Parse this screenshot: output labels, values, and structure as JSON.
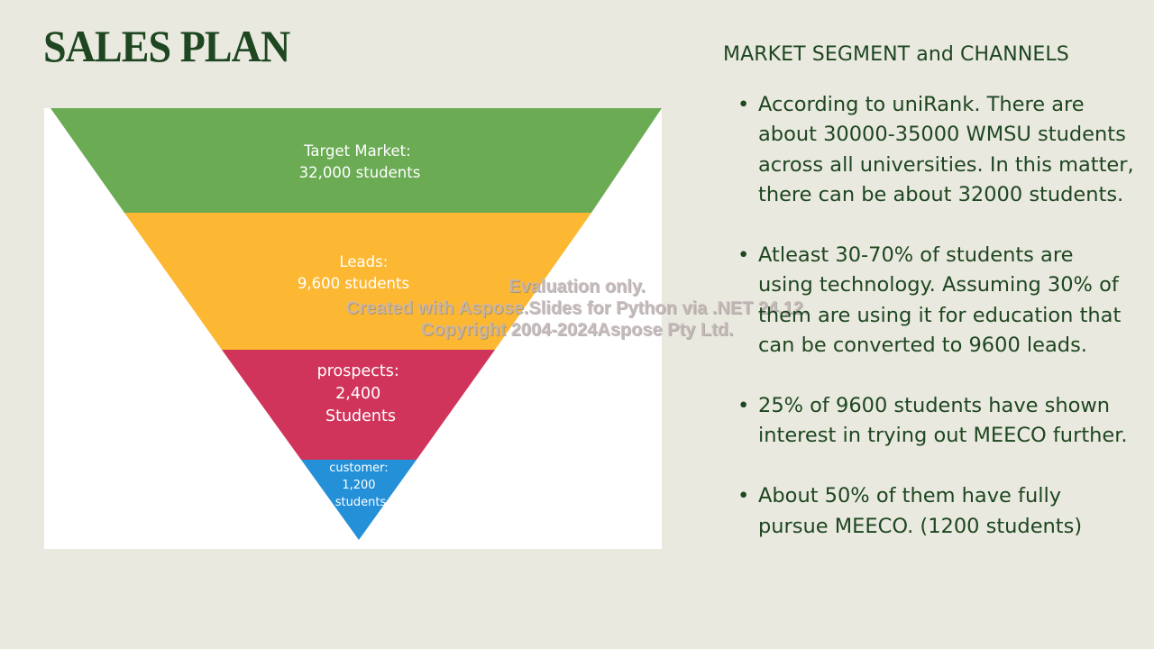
{
  "title": "SALES PLAN",
  "funnel": {
    "stages": [
      {
        "lines": [
          "Target Market:",
          "32,000 students"
        ],
        "color": "#6aab54"
      },
      {
        "lines": [
          "Leads:",
          "9,600 students"
        ],
        "color": "#fdb833"
      },
      {
        "lines": [
          "prospects:",
          "2,400",
          "Students"
        ],
        "color": "#d1345b"
      },
      {
        "lines": [
          "customer:",
          "1,200",
          "students"
        ],
        "color": "#2490d8"
      }
    ]
  },
  "watermark": [
    "Evaluation only.",
    "Created with Aspose.Slides for Python via .NET 24.12.",
    "Copyright 2004-2024Aspose Pty Ltd."
  ],
  "right": {
    "heading": "MARKET SEGMENT and CHANNELS",
    "bullet_symbol": "•",
    "bullets": [
      "According to uniRank. There are about 30000-35000 WMSU students across all universities. In this matter, there can be about 32000 students.",
      "Atleast 30-70% of students are using technology. Assuming 30% of them are using it for education that can be converted to 9600 leads.",
      "25% of 9600 students have shown interest in trying out MEECO further.",
      "About 50% of them have fully pursue MEECO. (1200 students)"
    ]
  }
}
